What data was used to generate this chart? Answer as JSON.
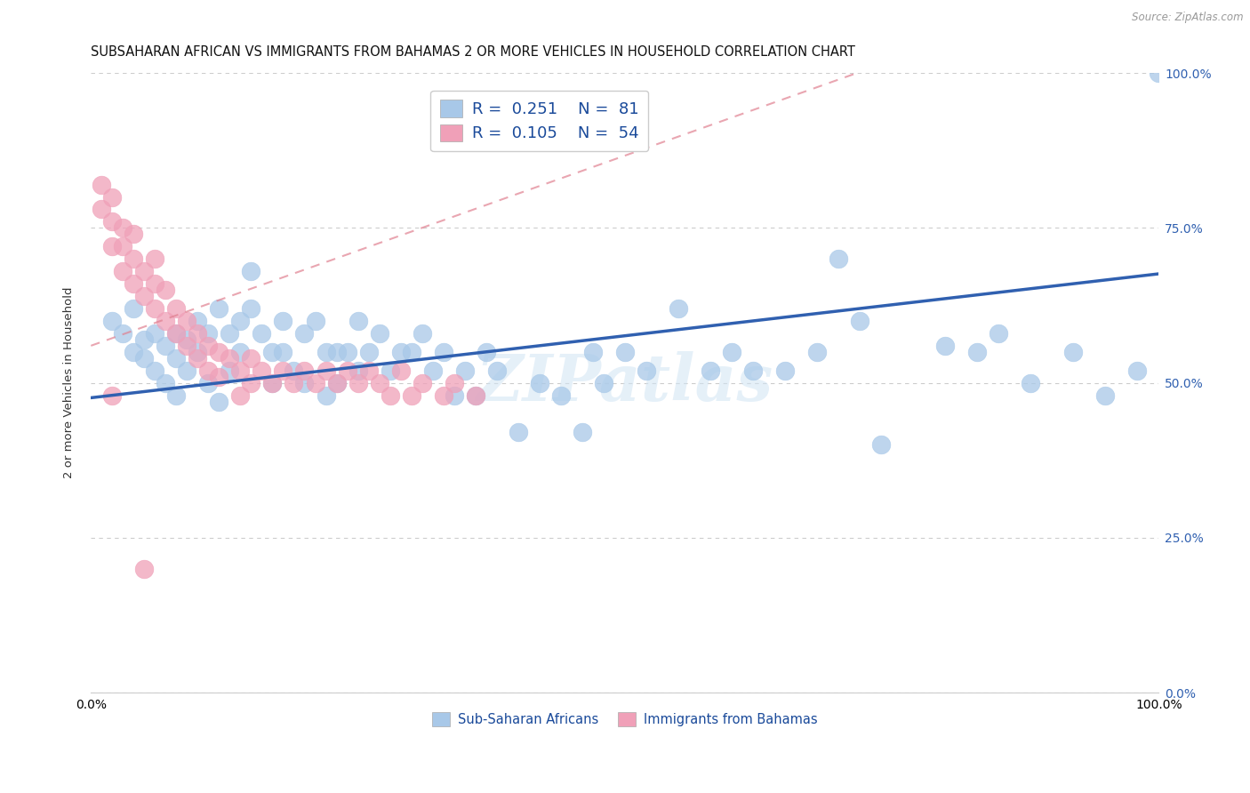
{
  "title": "SUBSAHARAN AFRICAN VS IMMIGRANTS FROM BAHAMAS 2 OR MORE VEHICLES IN HOUSEHOLD CORRELATION CHART",
  "source": "Source: ZipAtlas.com",
  "ylabel": "2 or more Vehicles in Household",
  "xlim": [
    0,
    1.0
  ],
  "ylim": [
    0,
    1.0
  ],
  "ytick_labels": [
    "0.0%",
    "25.0%",
    "50.0%",
    "75.0%",
    "100.0%"
  ],
  "ytick_positions": [
    0.0,
    0.25,
    0.5,
    0.75,
    1.0
  ],
  "xtick_positions": [
    0.0,
    1.0
  ],
  "xtick_labels": [
    "0.0%",
    "100.0%"
  ],
  "grid_color": "#cccccc",
  "blue_color": "#a8c8e8",
  "pink_color": "#f0a0b8",
  "blue_line_color": "#3060b0",
  "pink_line_color": "#e06080",
  "legend_R_blue": "0.251",
  "legend_N_blue": "81",
  "legend_R_pink": "0.105",
  "legend_N_pink": "54",
  "legend_label_blue": "Sub-Saharan Africans",
  "legend_label_pink": "Immigrants from Bahamas",
  "watermark": "ZIPatlas",
  "blue_line_x0": 0.0,
  "blue_line_y0": 0.476,
  "blue_line_x1": 1.0,
  "blue_line_y1": 0.676,
  "pink_line_x0": 0.0,
  "pink_line_y0": 0.56,
  "pink_line_x1": 0.75,
  "pink_line_y1": 1.02,
  "blue_scatter_x": [
    0.02,
    0.03,
    0.04,
    0.04,
    0.05,
    0.05,
    0.06,
    0.06,
    0.07,
    0.07,
    0.08,
    0.08,
    0.08,
    0.09,
    0.09,
    0.1,
    0.1,
    0.11,
    0.11,
    0.12,
    0.12,
    0.13,
    0.13,
    0.14,
    0.14,
    0.15,
    0.15,
    0.16,
    0.17,
    0.17,
    0.18,
    0.18,
    0.19,
    0.2,
    0.2,
    0.21,
    0.22,
    0.22,
    0.23,
    0.23,
    0.24,
    0.25,
    0.25,
    0.26,
    0.27,
    0.28,
    0.29,
    0.3,
    0.31,
    0.32,
    0.33,
    0.34,
    0.35,
    0.36,
    0.37,
    0.38,
    0.4,
    0.42,
    0.44,
    0.46,
    0.47,
    0.48,
    0.5,
    0.52,
    0.55,
    0.58,
    0.6,
    0.62,
    0.65,
    0.68,
    0.7,
    0.72,
    0.74,
    0.8,
    0.83,
    0.85,
    0.88,
    0.92,
    0.95,
    0.98,
    1.0
  ],
  "blue_scatter_y": [
    0.6,
    0.58,
    0.55,
    0.62,
    0.57,
    0.54,
    0.58,
    0.52,
    0.56,
    0.5,
    0.58,
    0.54,
    0.48,
    0.57,
    0.52,
    0.6,
    0.55,
    0.58,
    0.5,
    0.62,
    0.47,
    0.58,
    0.52,
    0.6,
    0.55,
    0.68,
    0.62,
    0.58,
    0.55,
    0.5,
    0.6,
    0.55,
    0.52,
    0.58,
    0.5,
    0.6,
    0.55,
    0.48,
    0.55,
    0.5,
    0.55,
    0.6,
    0.52,
    0.55,
    0.58,
    0.52,
    0.55,
    0.55,
    0.58,
    0.52,
    0.55,
    0.48,
    0.52,
    0.48,
    0.55,
    0.52,
    0.42,
    0.5,
    0.48,
    0.42,
    0.55,
    0.5,
    0.55,
    0.52,
    0.62,
    0.52,
    0.55,
    0.52,
    0.52,
    0.55,
    0.7,
    0.6,
    0.4,
    0.56,
    0.55,
    0.58,
    0.5,
    0.55,
    0.48,
    0.52,
    1.0
  ],
  "pink_scatter_x": [
    0.01,
    0.01,
    0.02,
    0.02,
    0.02,
    0.03,
    0.03,
    0.03,
    0.04,
    0.04,
    0.04,
    0.05,
    0.05,
    0.06,
    0.06,
    0.06,
    0.07,
    0.07,
    0.08,
    0.08,
    0.09,
    0.09,
    0.1,
    0.1,
    0.11,
    0.11,
    0.12,
    0.12,
    0.13,
    0.14,
    0.14,
    0.15,
    0.15,
    0.16,
    0.17,
    0.18,
    0.19,
    0.2,
    0.21,
    0.22,
    0.23,
    0.24,
    0.25,
    0.26,
    0.27,
    0.28,
    0.29,
    0.3,
    0.31,
    0.33,
    0.34,
    0.36,
    0.02,
    0.05
  ],
  "pink_scatter_y": [
    0.82,
    0.78,
    0.76,
    0.72,
    0.8,
    0.75,
    0.72,
    0.68,
    0.7,
    0.66,
    0.74,
    0.68,
    0.64,
    0.7,
    0.66,
    0.62,
    0.65,
    0.6,
    0.62,
    0.58,
    0.6,
    0.56,
    0.58,
    0.54,
    0.56,
    0.52,
    0.55,
    0.51,
    0.54,
    0.52,
    0.48,
    0.54,
    0.5,
    0.52,
    0.5,
    0.52,
    0.5,
    0.52,
    0.5,
    0.52,
    0.5,
    0.52,
    0.5,
    0.52,
    0.5,
    0.48,
    0.52,
    0.48,
    0.5,
    0.48,
    0.5,
    0.48,
    0.48,
    0.2
  ]
}
